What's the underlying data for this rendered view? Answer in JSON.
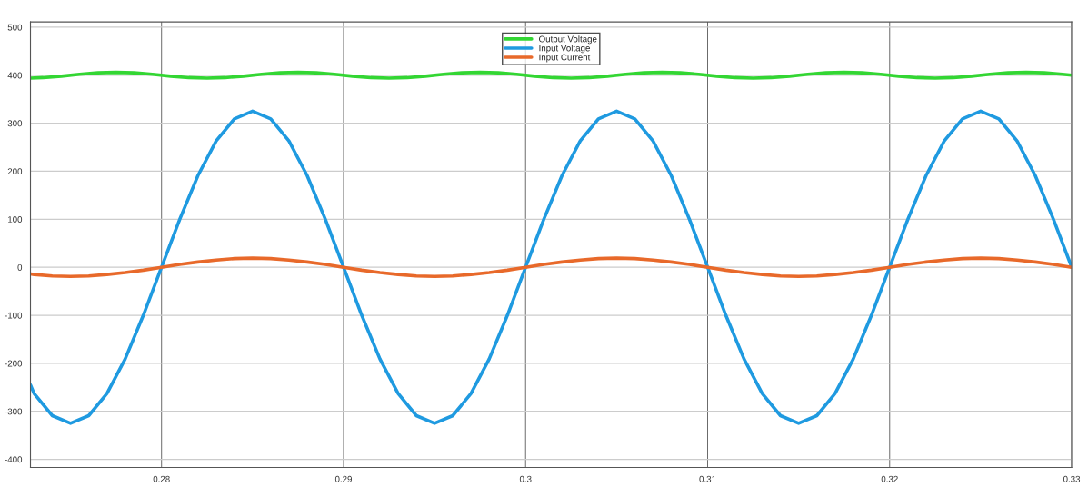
{
  "chart_data": {
    "type": "line",
    "xlim": [
      0.2728,
      0.33
    ],
    "xticks": [
      0.28,
      0.29,
      0.3,
      0.31,
      0.32,
      0.33
    ],
    "ylim": [
      -417,
      511
    ],
    "yticks": [
      -400,
      -300,
      -200,
      -100,
      0,
      100,
      200,
      300,
      400,
      500
    ],
    "grid": true,
    "legend": "top",
    "line_style": "solid",
    "series": [
      {
        "name": "Output Voltage",
        "color": "#33d633",
        "x": [
          0.2728,
          0.2735,
          0.2745,
          0.2755,
          0.2765,
          0.2775,
          0.2785,
          0.2795,
          0.2805,
          0.2815,
          0.2825,
          0.2835,
          0.2845,
          0.2855,
          0.2865,
          0.2875,
          0.2885,
          0.2895,
          0.2905,
          0.2915,
          0.2925,
          0.2935,
          0.2945,
          0.2955,
          0.2965,
          0.2975,
          0.2985,
          0.2995,
          0.3005,
          0.3015,
          0.3025,
          0.3035,
          0.3045,
          0.3055,
          0.3065,
          0.3075,
          0.3085,
          0.3095,
          0.3105,
          0.3115,
          0.3125,
          0.3135,
          0.3145,
          0.3155,
          0.3165,
          0.3175,
          0.3185,
          0.3195,
          0.3205,
          0.3215,
          0.3225,
          0.3235,
          0.3245,
          0.3255,
          0.3265,
          0.3275,
          0.3285,
          0.3295,
          0.33
        ],
        "values": [
          394,
          395,
          398,
          402,
          405,
          406,
          405,
          402,
          398,
          395,
          394,
          395,
          398,
          402,
          405,
          406,
          405,
          402,
          398,
          395,
          394,
          395,
          398,
          402,
          405,
          406,
          405,
          402,
          398,
          395,
          394,
          395,
          398,
          402,
          405,
          406,
          405,
          402,
          398,
          395,
          394,
          395,
          398,
          402,
          405,
          406,
          405,
          402,
          398,
          395,
          394,
          395,
          398,
          402,
          405,
          406,
          405,
          402,
          400
        ]
      },
      {
        "name": "Input Voltage",
        "color": "#1f9ae0",
        "x": [
          0.2728,
          0.273,
          0.274,
          0.275,
          0.276,
          0.277,
          0.278,
          0.279,
          0.28,
          0.281,
          0.282,
          0.283,
          0.284,
          0.285,
          0.286,
          0.287,
          0.288,
          0.289,
          0.29,
          0.291,
          0.292,
          0.293,
          0.294,
          0.295,
          0.296,
          0.297,
          0.298,
          0.299,
          0.3,
          0.301,
          0.302,
          0.303,
          0.304,
          0.305,
          0.306,
          0.307,
          0.308,
          0.309,
          0.31,
          0.311,
          0.312,
          0.313,
          0.314,
          0.315,
          0.316,
          0.317,
          0.318,
          0.319,
          0.32,
          0.321,
          0.322,
          0.323,
          0.324,
          0.325,
          0.326,
          0.327,
          0.328,
          0.329,
          0.33
        ],
        "values": [
          -245,
          -263,
          -309,
          -325,
          -309,
          -263,
          -191,
          -100,
          0,
          100,
          191,
          263,
          309,
          325,
          309,
          263,
          191,
          100,
          0,
          -100,
          -191,
          -263,
          -309,
          -325,
          -309,
          -263,
          -191,
          -100,
          0,
          100,
          191,
          263,
          309,
          325,
          309,
          263,
          191,
          100,
          0,
          -100,
          -191,
          -263,
          -309,
          -325,
          -309,
          -263,
          -191,
          -100,
          0,
          100,
          191,
          263,
          309,
          325,
          309,
          263,
          191,
          100,
          0
        ]
      },
      {
        "name": "Input Current",
        "color": "#e8692a",
        "x": [
          0.2728,
          0.273,
          0.274,
          0.275,
          0.276,
          0.277,
          0.278,
          0.279,
          0.28,
          0.281,
          0.282,
          0.283,
          0.284,
          0.285,
          0.286,
          0.287,
          0.288,
          0.289,
          0.29,
          0.291,
          0.292,
          0.293,
          0.294,
          0.295,
          0.296,
          0.297,
          0.298,
          0.299,
          0.3,
          0.301,
          0.302,
          0.303,
          0.304,
          0.305,
          0.306,
          0.307,
          0.308,
          0.309,
          0.31,
          0.311,
          0.312,
          0.313,
          0.314,
          0.315,
          0.316,
          0.317,
          0.318,
          0.319,
          0.32,
          0.321,
          0.322,
          0.323,
          0.324,
          0.325,
          0.326,
          0.327,
          0.328,
          0.329,
          0.33
        ],
        "values": [
          -14,
          -15,
          -18,
          -19,
          -18,
          -15,
          -11,
          -6,
          0,
          6,
          11,
          15,
          18,
          19,
          18,
          15,
          11,
          6,
          0,
          -6,
          -11,
          -15,
          -18,
          -19,
          -18,
          -15,
          -11,
          -6,
          0,
          6,
          11,
          15,
          18,
          19,
          18,
          15,
          11,
          6,
          0,
          -6,
          -11,
          -15,
          -18,
          -19,
          -18,
          -15,
          -11,
          -6,
          0,
          6,
          11,
          15,
          18,
          19,
          18,
          15,
          11,
          6,
          0
        ]
      }
    ]
  }
}
